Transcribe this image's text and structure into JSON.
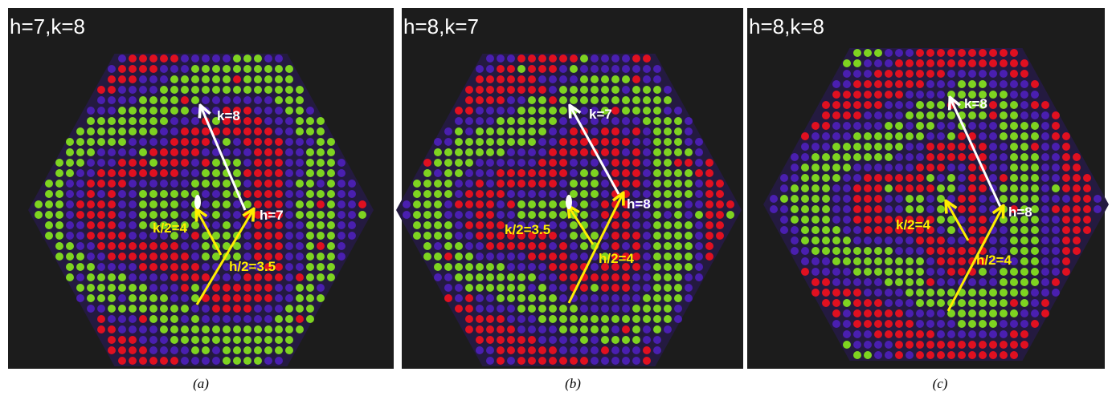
{
  "panels": [
    {
      "title": "h=7,k=8",
      "k_label": "k=8",
      "h_label": "h=7",
      "k_half_label": "k/2=4",
      "h_half_label": "h/2=3.5",
      "caption": "(a)"
    },
    {
      "title": "h=8,k=7",
      "k_label": "k=7",
      "h_label": "h=8",
      "k_half_label": "k/2=3.5",
      "h_half_label": "h/2=4",
      "caption": "(b)"
    },
    {
      "title": "h=8,k=8",
      "k_label": "k=8",
      "h_label": "h=8",
      "k_half_label": "k/2=4",
      "h_half_label": "h/2=4",
      "caption": "(c)"
    }
  ]
}
